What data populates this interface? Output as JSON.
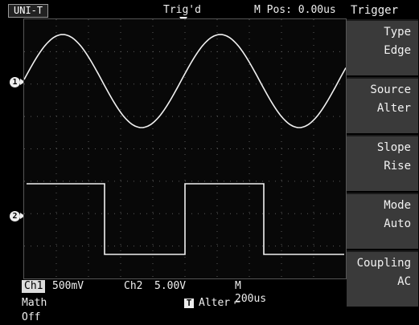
{
  "header": {
    "brand": "UNI-T",
    "trigger_status": "Trig'd",
    "main_position": "M Pos: 0.00us"
  },
  "screen": {
    "ch1_marker": "1",
    "ch2_marker": "2",
    "trace_color": "#f0f0f0",
    "grid_color": "#5a5a5a"
  },
  "menu": {
    "title": "Trigger",
    "items": [
      {
        "label": "Type",
        "value": "Edge"
      },
      {
        "label": "Source",
        "value": "Alter"
      },
      {
        "label": "Slope",
        "value": "Rise"
      },
      {
        "label": "Mode",
        "value": "Auto"
      },
      {
        "label": "Coupling",
        "value": "AC"
      }
    ]
  },
  "status": {
    "ch1_label": "Ch1",
    "ch1_scale": "500mV",
    "ch2_label": "Ch2",
    "ch2_scale": "5.00V",
    "timebase": "M 200us",
    "math": "Math Off",
    "trigger_icon": "T",
    "trigger_source": "Alter",
    "trigger_slope": "⌐"
  }
}
